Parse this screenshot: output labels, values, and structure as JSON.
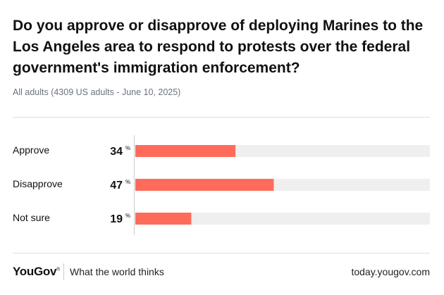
{
  "chart_data": {
    "type": "bar",
    "orientation": "horizontal",
    "title": "Do you approve or disapprove of deploying Marines to the Los Angeles area to respond to protests over the federal government's immigration enforcement?",
    "subtitle": "All adults (4309 US adults - June 10, 2025)",
    "categories": [
      "Approve",
      "Disapprove",
      "Not sure"
    ],
    "values": [
      34,
      47,
      19
    ],
    "unit": "%",
    "xlim": [
      0,
      100
    ],
    "bar_color": "#ff6b5b",
    "track_color": "#efefef"
  },
  "footer": {
    "logo": "YouGov",
    "tagline": "What the world thinks",
    "url": "today.yougov.com"
  }
}
